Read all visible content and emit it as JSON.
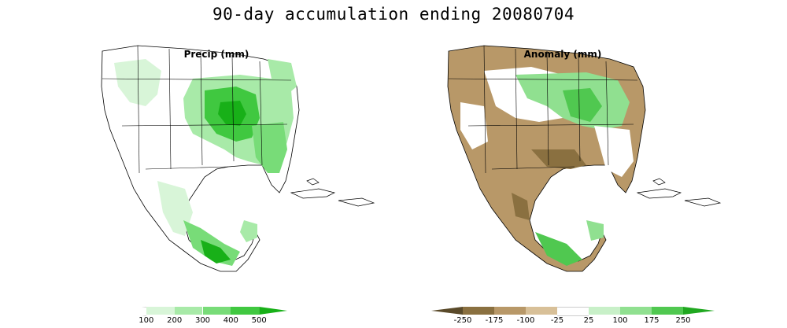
{
  "title": "90-day accumulation ending 20080704",
  "panels": {
    "precip": {
      "label": "Precip (mm)"
    },
    "anomaly": {
      "label": "Anomaly (mm)"
    }
  },
  "legend_precip": {
    "ticks": [
      "100",
      "200",
      "300",
      "400",
      "500"
    ],
    "colors": [
      "#ffffff",
      "#d8f5d8",
      "#a8eaa8",
      "#78dc78",
      "#40c840",
      "#18b018"
    ]
  },
  "legend_anomaly": {
    "ticks": [
      "-250",
      "-175",
      "-100",
      "-25",
      "25",
      "100",
      "175",
      "250"
    ],
    "colors": [
      "#5a4a2a",
      "#8a7040",
      "#b89868",
      "#d8c098",
      "#ffffff",
      "#c8f0c8",
      "#90e090",
      "#50c850",
      "#20a820"
    ]
  },
  "colors": {
    "ocean": "#ffffff",
    "border": "#000000",
    "precip_light": "#d8f5d8",
    "precip_mid": "#78dc78",
    "precip_heavy": "#18b018",
    "anom_dry": "#b89868",
    "anom_vdry": "#8a7040",
    "anom_wet": "#50c850"
  }
}
